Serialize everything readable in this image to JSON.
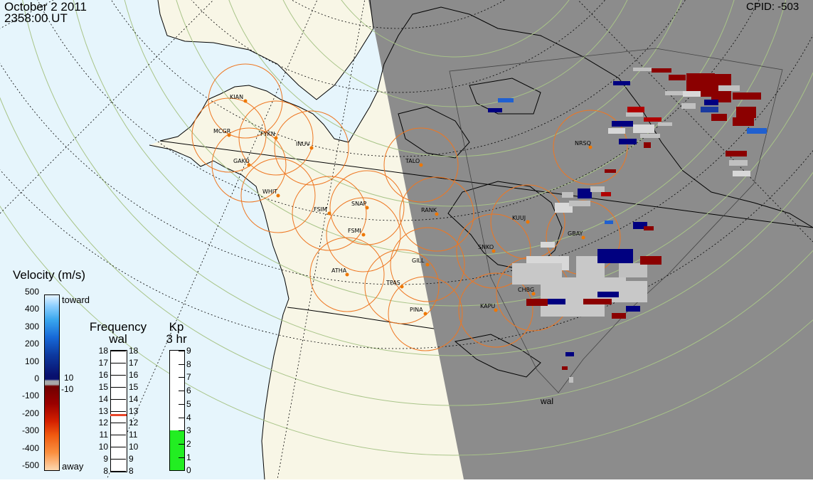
{
  "header": {
    "date": "October 2 2011",
    "time": "2358:00 UT",
    "cpid": "CPID: -503"
  },
  "radar_label": "wal",
  "stations": [
    {
      "name": "KIAN"
    },
    {
      "name": "MCGR"
    },
    {
      "name": "FYKN"
    },
    {
      "name": "INUV"
    },
    {
      "name": "GAKO"
    },
    {
      "name": "WHIT"
    },
    {
      "name": "FSIM"
    },
    {
      "name": "SNAP"
    },
    {
      "name": "FSMI"
    },
    {
      "name": "TALO"
    },
    {
      "name": "RANK"
    },
    {
      "name": "KUUJ"
    },
    {
      "name": "NRSQ"
    },
    {
      "name": "GBAY"
    },
    {
      "name": "SNKO"
    },
    {
      "name": "GILL"
    },
    {
      "name": "ATHA"
    },
    {
      "name": "TPAS"
    },
    {
      "name": "CHBG"
    },
    {
      "name": "KAPU"
    },
    {
      "name": "PINA"
    }
  ],
  "velocity_legend": {
    "title": "Velocity (m/s)",
    "ticks": [
      "500",
      "400",
      "300",
      "200",
      "100",
      "0",
      "-100",
      "-200",
      "-300",
      "-400",
      "-500"
    ],
    "toward": "toward",
    "away": "away",
    "mid_pos": "10",
    "mid_neg": "-10"
  },
  "frequency_legend": {
    "title": "Frequency",
    "subtitle": "wal",
    "ticks": [
      "18",
      "17",
      "16",
      "15",
      "14",
      "13",
      "12",
      "11",
      "10",
      "9",
      "8"
    ],
    "value_mhz": 12.7,
    "marker_color": "#e8462a"
  },
  "kp_legend": {
    "title": "Kp",
    "subtitle": "3 hr",
    "ticks": [
      "9",
      "8",
      "7",
      "6",
      "5",
      "4",
      "3",
      "2",
      "1",
      "0"
    ],
    "value": 3,
    "fill_color": "#22ee22"
  },
  "colors": {
    "ocean": "#e6f5fc",
    "land": "#f8f6e6",
    "night": "#8c8c8c",
    "fov_circle": "#ee7722",
    "station_dot": "#ee7700",
    "grid_dotted": "#000000",
    "grid_lat": "#a8c488"
  }
}
